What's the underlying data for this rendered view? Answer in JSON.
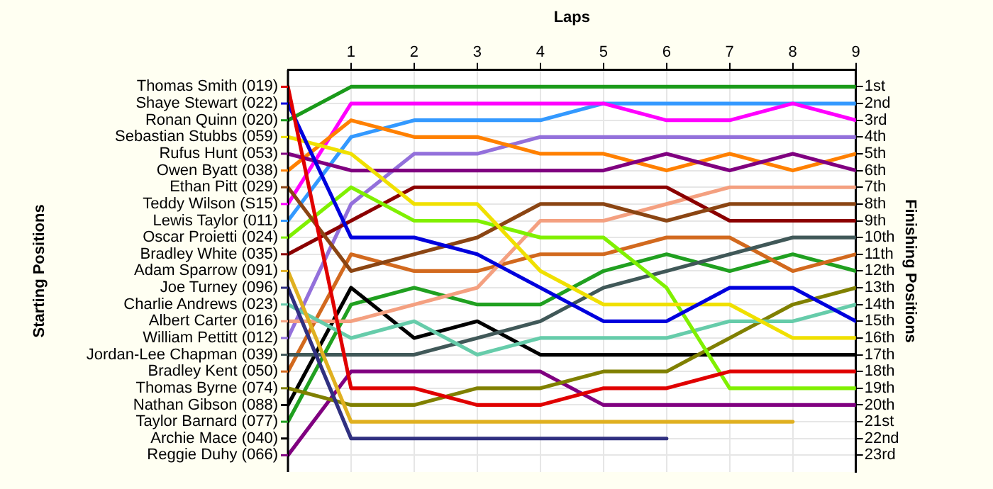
{
  "chart_data": {
    "type": "line",
    "xlabel": "Laps",
    "ylabel": "Finishing Positions",
    "annotations": [
      "Starting Positions",
      "Archie Mace (040)"
    ],
    "x": [
      0,
      1,
      2,
      3,
      4,
      5,
      6,
      7,
      8,
      9
    ],
    "xlim": [
      0,
      9
    ],
    "xticks": [
      1,
      2,
      3,
      4,
      5,
      6,
      7,
      8,
      9
    ],
    "ylim": [
      24,
      0
    ],
    "yticks": [
      {
        "value": 1,
        "label": "1st"
      },
      {
        "value": 2,
        "label": "2nd"
      },
      {
        "value": 3,
        "label": "3rd"
      },
      {
        "value": 4,
        "label": "4th"
      },
      {
        "value": 5,
        "label": "5th"
      },
      {
        "value": 6,
        "label": "6th"
      },
      {
        "value": 7,
        "label": "7th"
      },
      {
        "value": 8,
        "label": "8th"
      },
      {
        "value": 9,
        "label": "9th"
      },
      {
        "value": 10,
        "label": "10th"
      },
      {
        "value": 11,
        "label": "11th"
      },
      {
        "value": 12,
        "label": "12th"
      },
      {
        "value": 13,
        "label": "13th"
      },
      {
        "value": 14,
        "label": "14th"
      },
      {
        "value": 15,
        "label": "15th"
      },
      {
        "value": 16,
        "label": "16th"
      },
      {
        "value": 17,
        "label": "17th"
      },
      {
        "value": 18,
        "label": "18th"
      },
      {
        "value": 19,
        "label": "19th"
      },
      {
        "value": 20,
        "label": "20th"
      },
      {
        "value": 21,
        "label": "21st"
      },
      {
        "value": 22,
        "label": "22nd"
      },
      {
        "value": 23,
        "label": "23rd"
      }
    ],
    "grid": true,
    "legend": "left",
    "series": [
      {
        "name": "Thomas Smith (019)",
        "color": "#e00000",
        "values": [
          1,
          19,
          19,
          20,
          20,
          19,
          19,
          18,
          18,
          18
        ]
      },
      {
        "name": "Shaye Stewart (022)",
        "color": "#0000dd",
        "values": [
          2,
          10,
          10,
          11,
          13,
          15,
          15,
          13,
          13,
          15
        ]
      },
      {
        "name": "Ronan Quinn (020)",
        "color": "#1a9a1a",
        "values": [
          3,
          1,
          1,
          1,
          1,
          1,
          1,
          1,
          1,
          1
        ]
      },
      {
        "name": "Sebastian Stubbs (059)",
        "color": "#f0e000",
        "values": [
          4,
          5,
          8,
          8,
          12,
          14,
          14,
          14,
          16,
          16
        ]
      },
      {
        "name": "Rufus Hunt (053)",
        "color": "#800080",
        "values": [
          5,
          6,
          6,
          6,
          6,
          6,
          5,
          6,
          5,
          6
        ]
      },
      {
        "name": "Owen Byatt (038)",
        "color": "#ff8000",
        "values": [
          6,
          3,
          4,
          4,
          5,
          5,
          6,
          5,
          6,
          5
        ]
      },
      {
        "name": "Ethan Pitt (029)",
        "color": "#8b4513",
        "values": [
          7,
          12,
          11,
          10,
          8,
          8,
          9,
          8,
          8,
          8
        ]
      },
      {
        "name": "Teddy Wilson (S15)",
        "color": "#ff00ff",
        "values": [
          8,
          2,
          2,
          2,
          2,
          2,
          3,
          3,
          2,
          3
        ]
      },
      {
        "name": "Lewis Taylor (011)",
        "color": "#3399ff",
        "values": [
          9,
          4,
          3,
          3,
          3,
          2,
          2,
          2,
          2,
          2
        ]
      },
      {
        "name": "Oscar Proietti (024)",
        "color": "#80f000",
        "values": [
          10,
          7,
          9,
          9,
          10,
          10,
          13,
          19,
          19,
          19
        ]
      },
      {
        "name": "Bradley White (035)",
        "color": "#8b0000",
        "values": [
          11,
          9,
          7,
          7,
          7,
          7,
          7,
          9,
          9,
          9
        ]
      },
      {
        "name": "Adam Sparrow (091)",
        "color": "#e0b020",
        "values": [
          12,
          21,
          21,
          21,
          21,
          21,
          21,
          21,
          21,
          null
        ]
      },
      {
        "name": "Joe Turney (096)",
        "color": "#303080",
        "values": [
          13,
          22,
          22,
          22,
          22,
          22,
          22,
          null,
          null,
          null
        ]
      },
      {
        "name": "Charlie Andrews (023)",
        "color": "#66ccaa",
        "values": [
          14,
          16,
          15,
          17,
          16,
          16,
          16,
          15,
          15,
          14
        ]
      },
      {
        "name": "Albert Carter (016)",
        "color": "#f4a080",
        "values": [
          15,
          15,
          14,
          13,
          9,
          9,
          8,
          7,
          7,
          7
        ]
      },
      {
        "name": "William Pettitt (012)",
        "color": "#9370db",
        "values": [
          16,
          8,
          5,
          5,
          4,
          4,
          4,
          4,
          4,
          4
        ]
      },
      {
        "name": "Jordan-Lee Chapman (039)",
        "color": "#405858",
        "values": [
          17,
          17,
          17,
          16,
          15,
          13,
          12,
          11,
          10,
          10
        ]
      },
      {
        "name": "Bradley Kent (050)",
        "color": "#d2691e",
        "values": [
          18,
          11,
          12,
          12,
          11,
          11,
          10,
          10,
          12,
          11
        ]
      },
      {
        "name": "Thomas Byrne (074)",
        "color": "#808000",
        "values": [
          19,
          20,
          20,
          19,
          19,
          18,
          18,
          16,
          14,
          13
        ]
      },
      {
        "name": "Nathan Gibson (088)",
        "color": "#000000",
        "values": [
          20,
          13,
          16,
          15,
          17,
          17,
          17,
          17,
          17,
          17
        ]
      },
      {
        "name": "Taylor Barnard (077)",
        "color": "#20a020",
        "values": [
          21,
          14,
          13,
          14,
          14,
          12,
          11,
          12,
          11,
          12
        ]
      },
      {
        "name": "Reggie Duhy (066)",
        "color": "#800080",
        "values": [
          23,
          18,
          18,
          18,
          18,
          20,
          20,
          20,
          20,
          20
        ]
      }
    ]
  }
}
